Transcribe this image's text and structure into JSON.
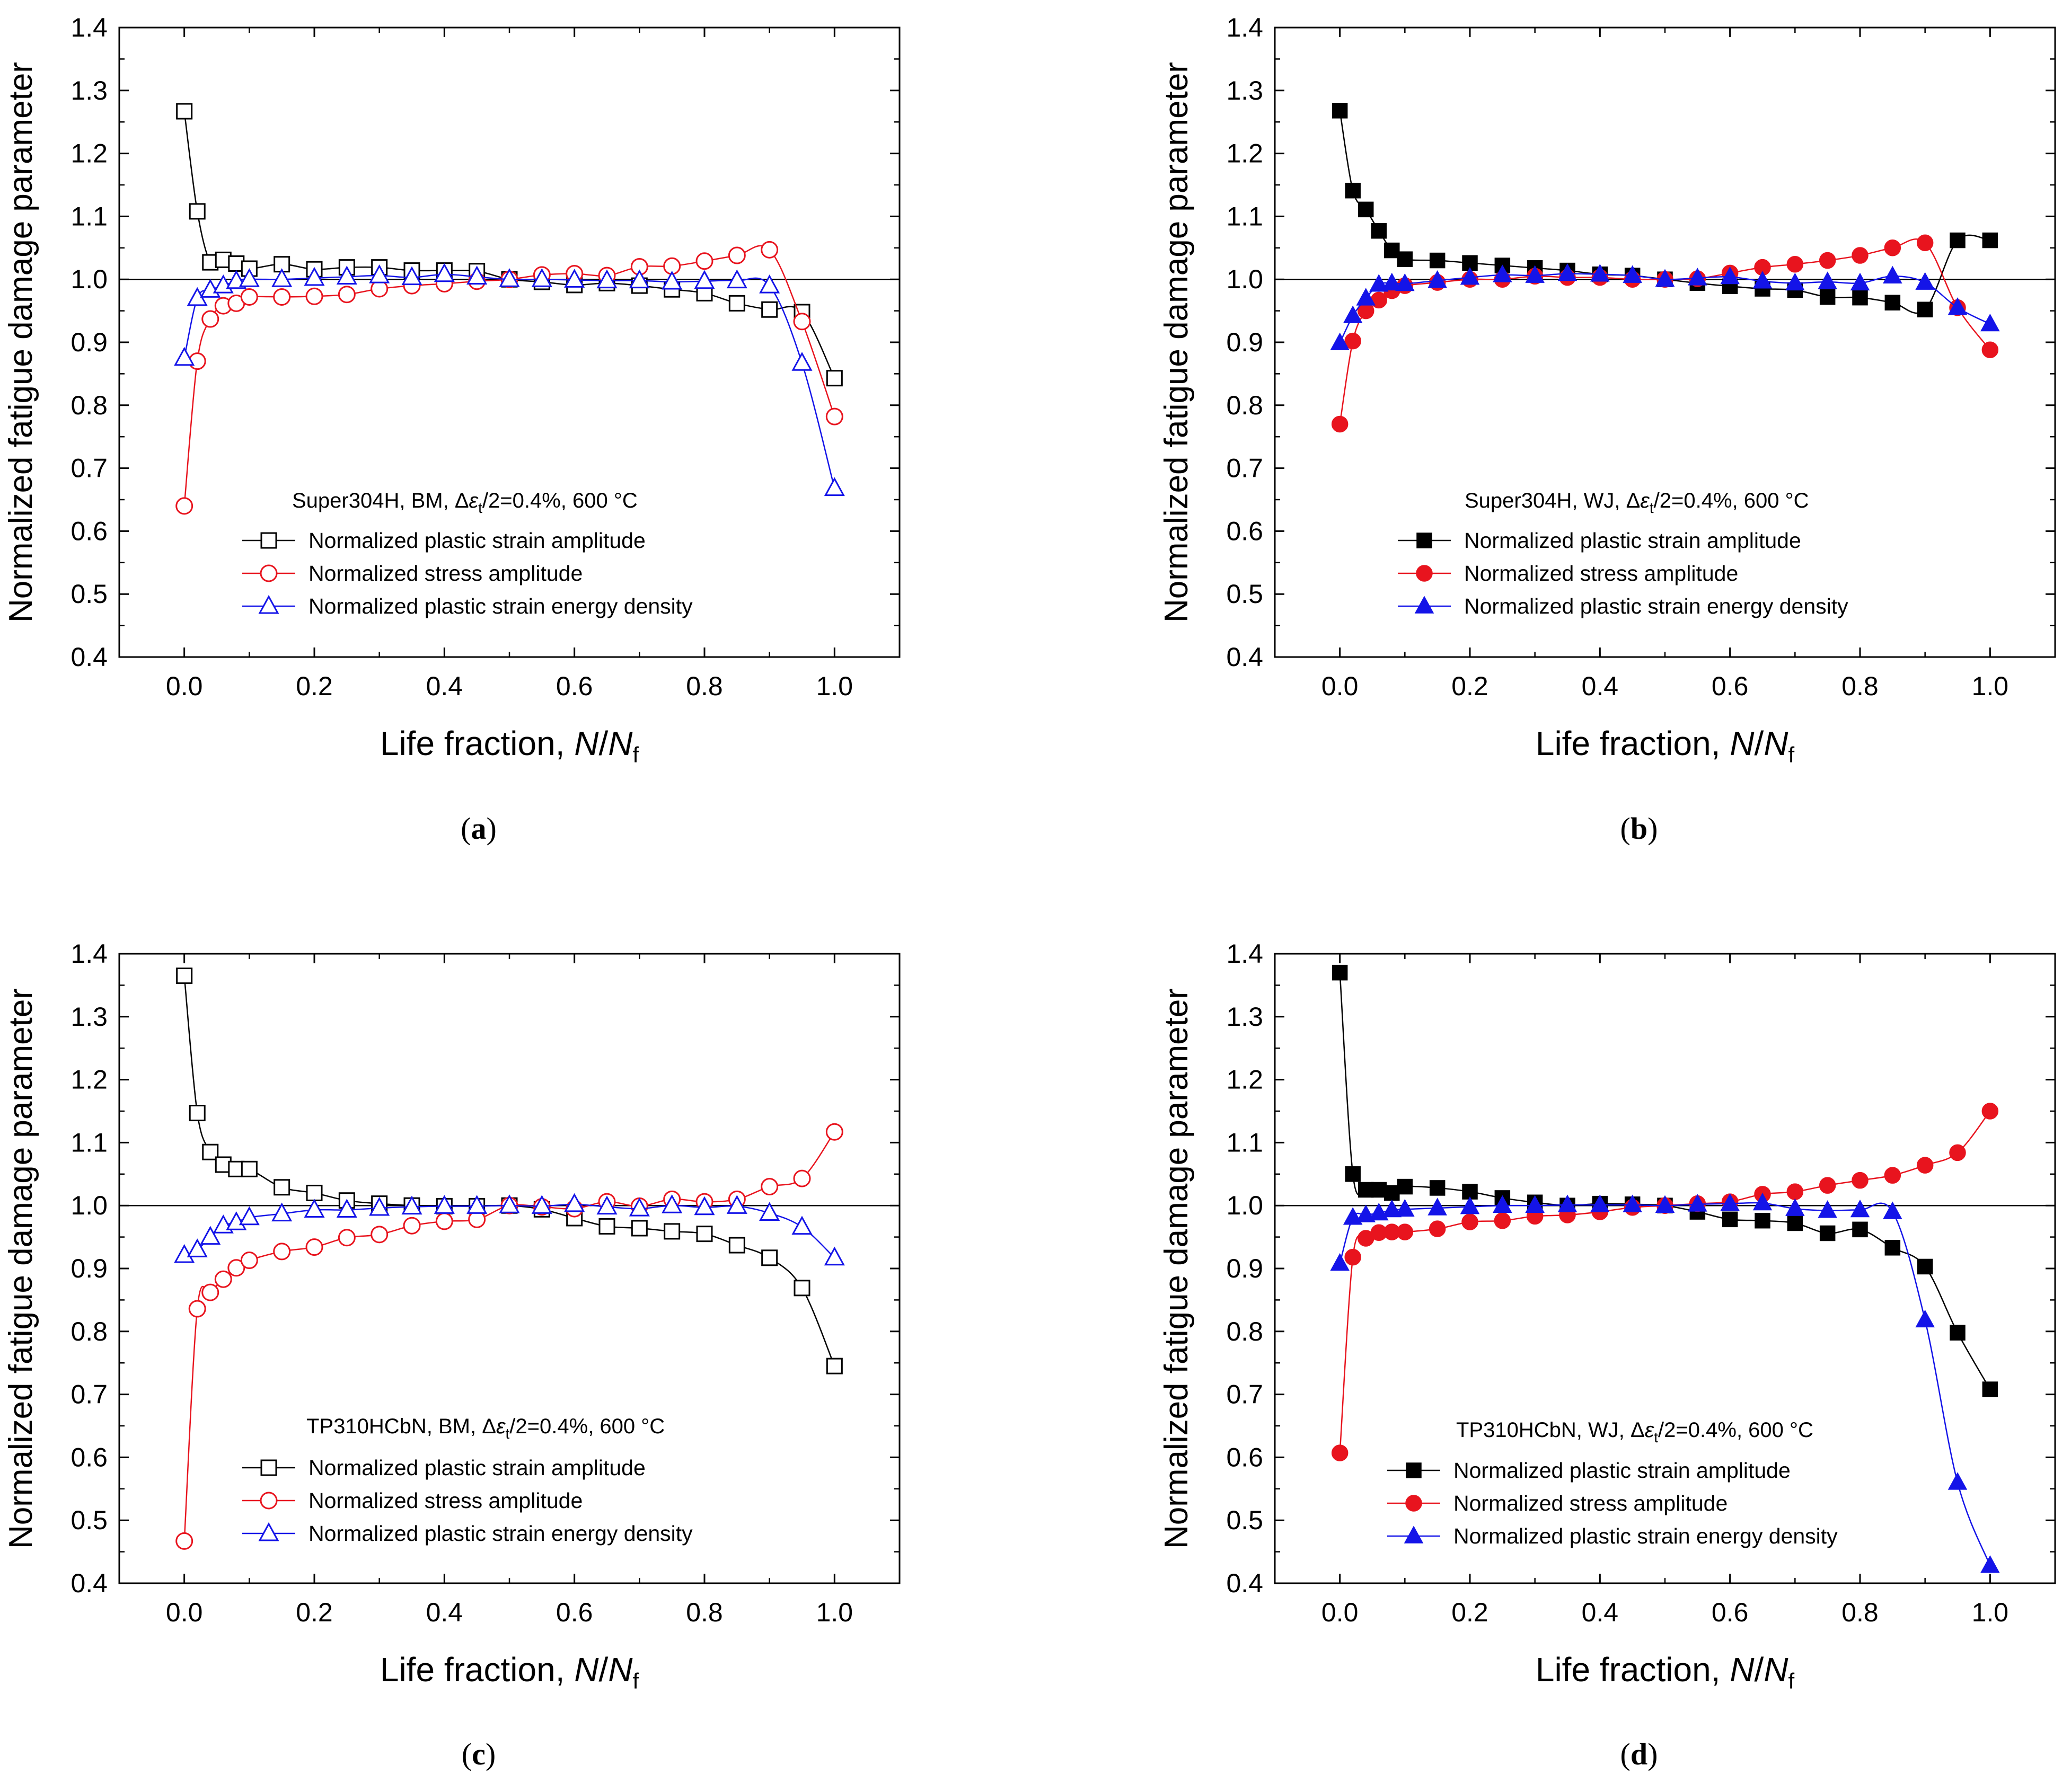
{
  "figure": {
    "axes_common": {
      "xlabel_text": "Life fraction, ",
      "xlabel_n": "N",
      "xlabel_slash": "/",
      "xlabel_nf": "N",
      "xlabel_sub": "f",
      "ylabel": "Normalized fatigue damage parameter",
      "xlim": [
        -0.1,
        1.1
      ],
      "ylim": [
        0.4,
        1.4
      ],
      "xticks": [
        0.0,
        0.2,
        0.4,
        0.6,
        0.8,
        1.0
      ],
      "xtick_labels": [
        "0.0",
        "0.2",
        "0.4",
        "0.6",
        "0.8",
        "1.0"
      ],
      "yticks": [
        0.4,
        0.5,
        0.6,
        0.7,
        0.8,
        0.9,
        1.0,
        1.1,
        1.2,
        1.3,
        1.4
      ],
      "ytick_labels": [
        "0.4",
        "0.5",
        "0.6",
        "0.7",
        "0.8",
        "0.9",
        "1.0",
        "1.1",
        "1.2",
        "1.3",
        "1.4"
      ],
      "reference_line_y": 1.0
    },
    "colors": {
      "strain": "#000000",
      "stress": "#e8141e",
      "energy": "#1414e8"
    }
  },
  "chart_data": [
    {
      "id": "a",
      "type": "line",
      "caption": "(a)",
      "caption_letter": "a",
      "annotation": {
        "material": "Super304H, BM, ",
        "delta": "Δ",
        "epsilon": "ε",
        "sub": "t",
        "rest": "/2=0.4%, 600 °C"
      },
      "filled": false,
      "series": [
        {
          "name": "Normalized plastic strain amplitude",
          "marker": "square",
          "color": "#000000",
          "x": [
            0,
            0.02,
            0.04,
            0.06,
            0.08,
            0.1,
            0.15,
            0.2,
            0.25,
            0.3,
            0.35,
            0.4,
            0.45,
            0.5,
            0.55,
            0.6,
            0.65,
            0.7,
            0.75,
            0.8,
            0.85,
            0.9,
            0.95,
            1.0
          ],
          "y": [
            1.267,
            1.108,
            1.027,
            1.031,
            1.025,
            1.017,
            1.024,
            1.016,
            1.019,
            1.019,
            1.014,
            1.014,
            1.013,
            1.0,
            0.996,
            0.991,
            0.994,
            0.99,
            0.984,
            0.978,
            0.962,
            0.952,
            0.948,
            0.843
          ]
        },
        {
          "name": "Normalized stress amplitude",
          "marker": "circle",
          "color": "#e8141e",
          "x": [
            0,
            0.02,
            0.04,
            0.06,
            0.08,
            0.1,
            0.15,
            0.2,
            0.25,
            0.3,
            0.35,
            0.4,
            0.45,
            0.5,
            0.55,
            0.6,
            0.65,
            0.7,
            0.75,
            0.8,
            0.85,
            0.9,
            0.95,
            1.0
          ],
          "y": [
            0.64,
            0.87,
            0.937,
            0.958,
            0.962,
            0.972,
            0.972,
            0.973,
            0.976,
            0.985,
            0.99,
            0.993,
            0.997,
            1.0,
            1.007,
            1.009,
            1.006,
            1.02,
            1.021,
            1.029,
            1.038,
            1.047,
            0.933,
            0.782
          ]
        },
        {
          "name": "Normalized plastic strain energy density",
          "marker": "triangle",
          "color": "#1414e8",
          "x": [
            0,
            0.02,
            0.04,
            0.06,
            0.08,
            0.1,
            0.15,
            0.2,
            0.25,
            0.3,
            0.35,
            0.4,
            0.45,
            0.5,
            0.55,
            0.6,
            0.65,
            0.7,
            0.75,
            0.8,
            0.85,
            0.9,
            0.95,
            1.0
          ],
          "y": [
            0.875,
            0.97,
            0.983,
            0.99,
            0.997,
            1.0,
            1.0,
            1.002,
            1.004,
            1.006,
            1.003,
            1.008,
            1.004,
            1.0,
            1.0,
            0.999,
            0.998,
            0.998,
            0.996,
            0.997,
            0.998,
            0.99,
            0.867,
            0.668
          ]
        }
      ]
    },
    {
      "id": "b",
      "type": "line",
      "caption": "(b)",
      "caption_letter": "b",
      "annotation": {
        "material": "Super304H, WJ, ",
        "delta": "Δ",
        "epsilon": "ε",
        "sub": "t",
        "rest": "/2=0.4%, 600 °C"
      },
      "filled": true,
      "series": [
        {
          "name": "Normalized plastic strain amplitude",
          "marker": "square",
          "color": "#000000",
          "x": [
            0,
            0.02,
            0.04,
            0.06,
            0.08,
            0.1,
            0.15,
            0.2,
            0.25,
            0.3,
            0.35,
            0.4,
            0.45,
            0.5,
            0.55,
            0.6,
            0.65,
            0.7,
            0.75,
            0.8,
            0.85,
            0.9,
            0.95,
            1.0
          ],
          "y": [
            1.268,
            1.141,
            1.111,
            1.077,
            1.046,
            1.032,
            1.03,
            1.026,
            1.022,
            1.018,
            1.014,
            1.008,
            1.006,
            1.0,
            0.994,
            0.989,
            0.985,
            0.983,
            0.972,
            0.971,
            0.963,
            0.952,
            1.062,
            1.062
          ]
        },
        {
          "name": "Normalized stress amplitude",
          "marker": "circle",
          "color": "#e8141e",
          "x": [
            0,
            0.02,
            0.04,
            0.06,
            0.08,
            0.1,
            0.15,
            0.2,
            0.25,
            0.3,
            0.35,
            0.4,
            0.45,
            0.5,
            0.55,
            0.6,
            0.65,
            0.7,
            0.75,
            0.8,
            0.85,
            0.9,
            0.95,
            1.0
          ],
          "y": [
            0.77,
            0.902,
            0.95,
            0.967,
            0.982,
            0.99,
            0.995,
            1.0,
            1.0,
            1.005,
            1.003,
            1.003,
            1.0,
            1.0,
            1.001,
            1.01,
            1.019,
            1.024,
            1.03,
            1.038,
            1.05,
            1.058,
            0.955,
            0.888
          ]
        },
        {
          "name": "Normalized plastic strain energy density",
          "marker": "triangle",
          "color": "#1414e8",
          "x": [
            0,
            0.02,
            0.04,
            0.06,
            0.08,
            0.1,
            0.15,
            0.2,
            0.25,
            0.3,
            0.35,
            0.4,
            0.45,
            0.5,
            0.55,
            0.6,
            0.65,
            0.7,
            0.75,
            0.8,
            0.85,
            0.9,
            0.95,
            1.0
          ],
          "y": [
            0.899,
            0.942,
            0.97,
            0.992,
            0.994,
            0.993,
            0.998,
            1.003,
            1.007,
            1.006,
            1.009,
            1.008,
            1.006,
            1.0,
            1.002,
            1.004,
            0.997,
            0.994,
            0.996,
            0.994,
            1.005,
            0.995,
            0.955,
            0.929
          ]
        }
      ]
    },
    {
      "id": "c",
      "type": "line",
      "caption": "(c)",
      "caption_letter": "c",
      "annotation": {
        "material": "TP310HCbN, BM, ",
        "delta": "Δ",
        "epsilon": "ε",
        "sub": "t",
        "rest": "/2=0.4%, 600 °C"
      },
      "filled": false,
      "series": [
        {
          "name": "Normalized plastic strain amplitude",
          "marker": "square",
          "color": "#000000",
          "x": [
            0,
            0.02,
            0.04,
            0.06,
            0.08,
            0.1,
            0.15,
            0.2,
            0.25,
            0.3,
            0.35,
            0.4,
            0.45,
            0.5,
            0.55,
            0.6,
            0.65,
            0.7,
            0.75,
            0.8,
            0.85,
            0.9,
            0.95,
            1.0
          ],
          "y": [
            1.365,
            1.147,
            1.085,
            1.065,
            1.058,
            1.058,
            1.029,
            1.02,
            1.008,
            1.003,
            1.0,
            0.999,
            0.999,
            1.0,
            0.994,
            0.98,
            0.967,
            0.964,
            0.959,
            0.955,
            0.937,
            0.917,
            0.869,
            0.745
          ]
        },
        {
          "name": "Normalized stress amplitude",
          "marker": "circle",
          "color": "#e8141e",
          "x": [
            0,
            0.02,
            0.04,
            0.06,
            0.08,
            0.1,
            0.15,
            0.2,
            0.25,
            0.3,
            0.35,
            0.4,
            0.45,
            0.5,
            0.55,
            0.6,
            0.65,
            0.7,
            0.75,
            0.8,
            0.85,
            0.9,
            0.95,
            1.0
          ],
          "y": [
            0.467,
            0.836,
            0.862,
            0.883,
            0.901,
            0.913,
            0.927,
            0.934,
            0.949,
            0.954,
            0.968,
            0.975,
            0.978,
            1.0,
            0.998,
            0.995,
            1.006,
            0.999,
            1.01,
            1.006,
            1.01,
            1.03,
            1.043,
            1.117
          ]
        },
        {
          "name": "Normalized plastic strain energy density",
          "marker": "triangle",
          "color": "#1414e8",
          "x": [
            0,
            0.02,
            0.04,
            0.06,
            0.08,
            0.1,
            0.15,
            0.2,
            0.25,
            0.3,
            0.35,
            0.4,
            0.45,
            0.5,
            0.55,
            0.6,
            0.65,
            0.7,
            0.75,
            0.8,
            0.85,
            0.9,
            0.95,
            1.0
          ],
          "y": [
            0.921,
            0.93,
            0.95,
            0.968,
            0.973,
            0.981,
            0.987,
            0.993,
            0.993,
            0.996,
            0.998,
            0.999,
            0.999,
            1.0,
            0.999,
            1.002,
            0.998,
            0.995,
            1.0,
            0.997,
            0.999,
            0.988,
            0.966,
            0.917
          ]
        }
      ]
    },
    {
      "id": "d",
      "type": "line",
      "caption": "(d)",
      "caption_letter": "d",
      "annotation": {
        "material": "TP310HCbN, WJ, ",
        "delta": "Δ",
        "epsilon": "ε",
        "sub": "t",
        "rest": "/2=0.4%, 600 °C"
      },
      "filled": true,
      "series": [
        {
          "name": "Normalized plastic strain amplitude",
          "marker": "square",
          "color": "#000000",
          "x": [
            0,
            0.02,
            0.04,
            0.06,
            0.08,
            0.1,
            0.15,
            0.2,
            0.25,
            0.3,
            0.35,
            0.4,
            0.45,
            0.5,
            0.55,
            0.6,
            0.65,
            0.7,
            0.75,
            0.8,
            0.85,
            0.9,
            0.95,
            1.0
          ],
          "y": [
            1.37,
            1.05,
            1.025,
            1.025,
            1.02,
            1.03,
            1.028,
            1.022,
            1.012,
            1.005,
            1.0,
            1.003,
            1.002,
            1.0,
            0.99,
            0.978,
            0.976,
            0.972,
            0.956,
            0.962,
            0.933,
            0.903,
            0.798,
            0.708
          ]
        },
        {
          "name": "Normalized stress amplitude",
          "marker": "circle",
          "color": "#e8141e",
          "x": [
            0,
            0.02,
            0.04,
            0.06,
            0.08,
            0.1,
            0.15,
            0.2,
            0.25,
            0.3,
            0.35,
            0.4,
            0.45,
            0.5,
            0.55,
            0.6,
            0.65,
            0.7,
            0.75,
            0.8,
            0.85,
            0.9,
            0.95,
            1.0
          ],
          "y": [
            0.607,
            0.918,
            0.948,
            0.957,
            0.958,
            0.958,
            0.963,
            0.974,
            0.976,
            0.983,
            0.985,
            0.99,
            0.997,
            1.0,
            1.003,
            1.006,
            1.018,
            1.022,
            1.032,
            1.04,
            1.048,
            1.064,
            1.084,
            1.15
          ]
        },
        {
          "name": "Normalized plastic strain energy density",
          "marker": "triangle",
          "color": "#1414e8",
          "x": [
            0,
            0.02,
            0.04,
            0.06,
            0.08,
            0.1,
            0.15,
            0.2,
            0.25,
            0.3,
            0.35,
            0.4,
            0.45,
            0.5,
            0.55,
            0.6,
            0.65,
            0.7,
            0.75,
            0.8,
            0.85,
            0.9,
            0.95,
            1.0
          ],
          "y": [
            0.908,
            0.981,
            0.985,
            0.988,
            0.993,
            0.994,
            0.996,
            0.998,
            1.0,
            1.0,
            1.001,
            1.001,
            1.001,
            1.0,
            1.002,
            1.003,
            1.004,
            0.995,
            0.992,
            0.993,
            0.99,
            0.818,
            0.56,
            0.428
          ]
        }
      ]
    }
  ]
}
